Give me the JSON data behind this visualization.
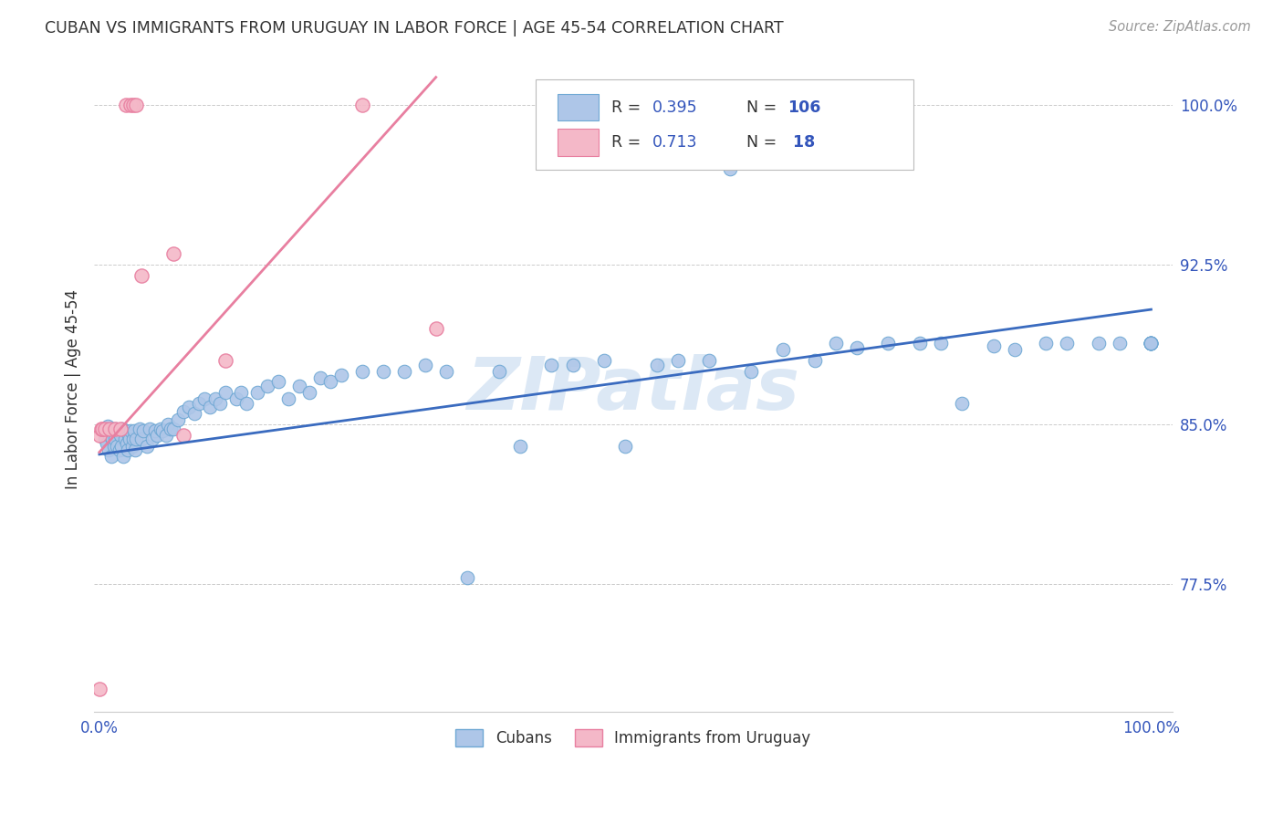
{
  "title": "CUBAN VS IMMIGRANTS FROM URUGUAY IN LABOR FORCE | AGE 45-54 CORRELATION CHART",
  "source": "Source: ZipAtlas.com",
  "ylabel": "In Labor Force | Age 45-54",
  "x_min": 0.0,
  "x_max": 1.0,
  "y_ticks": [
    0.775,
    0.85,
    0.925,
    1.0
  ],
  "y_tick_labels": [
    "77.5%",
    "85.0%",
    "92.5%",
    "100.0%"
  ],
  "x_ticks": [
    0.0,
    0.25,
    0.5,
    0.75,
    1.0
  ],
  "x_tick_labels": [
    "0.0%",
    "",
    "",
    "",
    "100.0%"
  ],
  "cubans_color": "#aec6e8",
  "cubans_edge_color": "#6fa8d4",
  "uruguay_color": "#f4b8c8",
  "uruguay_edge_color": "#e87fa0",
  "trend_cuban_color": "#3a6bbf",
  "trend_uruguay_color": "#e87fa0",
  "watermark_text": "ZIPatlas",
  "watermark_color": "#c5d9ef",
  "legend_r1": "0.395",
  "legend_n1": "106",
  "legend_r2": "0.713",
  "legend_n2": " 18",
  "legend_text_color": "#333333",
  "legend_value_color": "#3355bb",
  "bottom_legend_cubans": "Cubans",
  "bottom_legend_uruguay": "Immigrants from Uruguay",
  "x_cuban": [
    0.005,
    0.006,
    0.007,
    0.008,
    0.009,
    0.01,
    0.011,
    0.012,
    0.013,
    0.014,
    0.015,
    0.016,
    0.017,
    0.018,
    0.019,
    0.02,
    0.021,
    0.022,
    0.023,
    0.024,
    0.025,
    0.026,
    0.027,
    0.028,
    0.029,
    0.03,
    0.031,
    0.032,
    0.033,
    0.034,
    0.035,
    0.038,
    0.04,
    0.042,
    0.045,
    0.048,
    0.05,
    0.053,
    0.055,
    0.058,
    0.06,
    0.063,
    0.065,
    0.068,
    0.07,
    0.075,
    0.08,
    0.085,
    0.09,
    0.095,
    0.1,
    0.105,
    0.11,
    0.115,
    0.12,
    0.13,
    0.135,
    0.14,
    0.15,
    0.16,
    0.17,
    0.18,
    0.19,
    0.2,
    0.21,
    0.22,
    0.23,
    0.25,
    0.27,
    0.29,
    0.31,
    0.33,
    0.35,
    0.38,
    0.4,
    0.43,
    0.45,
    0.48,
    0.5,
    0.53,
    0.55,
    0.58,
    0.6,
    0.62,
    0.65,
    0.68,
    0.7,
    0.72,
    0.75,
    0.78,
    0.8,
    0.82,
    0.85,
    0.87,
    0.9,
    0.92,
    0.95,
    0.97,
    1.0,
    1.0,
    1.0,
    1.0,
    1.0,
    1.0,
    1.0,
    1.0
  ],
  "y_cuban": [
    0.843,
    0.847,
    0.841,
    0.849,
    0.838,
    0.845,
    0.835,
    0.843,
    0.848,
    0.84,
    0.843,
    0.848,
    0.84,
    0.847,
    0.838,
    0.845,
    0.84,
    0.848,
    0.835,
    0.843,
    0.847,
    0.841,
    0.838,
    0.845,
    0.843,
    0.847,
    0.84,
    0.843,
    0.847,
    0.838,
    0.843,
    0.848,
    0.843,
    0.847,
    0.84,
    0.848,
    0.843,
    0.847,
    0.845,
    0.848,
    0.847,
    0.845,
    0.85,
    0.848,
    0.848,
    0.852,
    0.856,
    0.858,
    0.855,
    0.86,
    0.862,
    0.858,
    0.862,
    0.86,
    0.865,
    0.862,
    0.865,
    0.86,
    0.865,
    0.868,
    0.87,
    0.862,
    0.868,
    0.865,
    0.872,
    0.87,
    0.873,
    0.875,
    0.875,
    0.875,
    0.878,
    0.875,
    0.778,
    0.875,
    0.84,
    0.878,
    0.878,
    0.88,
    0.84,
    0.878,
    0.88,
    0.88,
    0.97,
    0.875,
    0.885,
    0.88,
    0.888,
    0.886,
    0.888,
    0.888,
    0.888,
    0.86,
    0.887,
    0.885,
    0.888,
    0.888,
    0.888,
    0.888,
    0.888,
    0.888,
    0.888,
    0.888,
    0.888,
    0.888,
    0.888,
    0.888
  ],
  "x_uruguay": [
    0.0,
    0.0,
    0.002,
    0.003,
    0.005,
    0.01,
    0.015,
    0.02,
    0.025,
    0.03,
    0.032,
    0.035,
    0.04,
    0.07,
    0.08,
    0.12,
    0.25,
    0.32
  ],
  "y_uruguay": [
    0.726,
    0.845,
    0.848,
    0.848,
    0.848,
    0.848,
    0.848,
    0.848,
    1.0,
    1.0,
    1.0,
    1.0,
    0.92,
    0.93,
    0.845,
    0.88,
    1.0,
    0.895
  ]
}
